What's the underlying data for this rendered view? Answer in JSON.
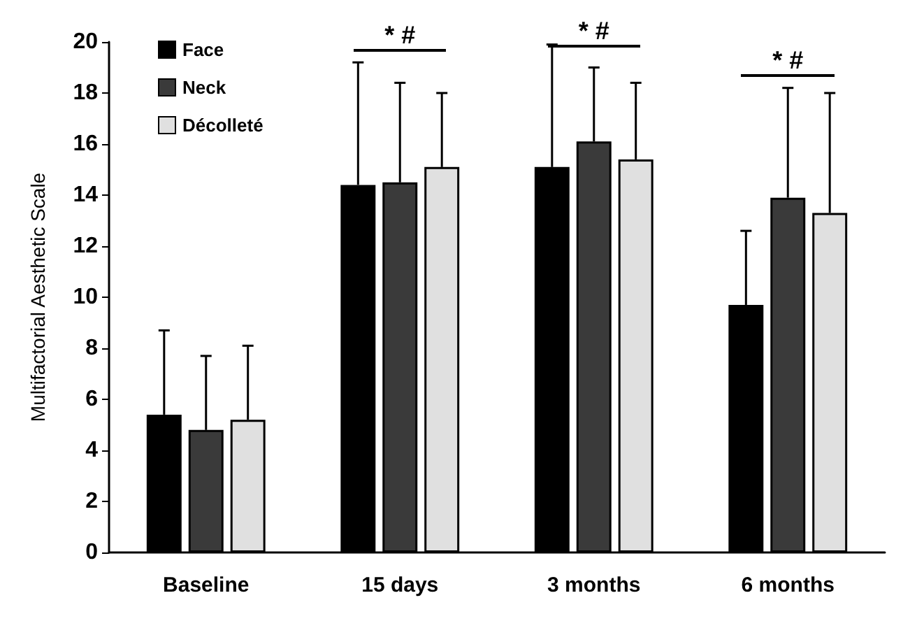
{
  "chart_data": {
    "type": "bar",
    "ylabel": "Multifactorial Aesthetic Scale",
    "categories": [
      "Baseline",
      "15 days",
      "3 months",
      "6 months"
    ],
    "series": [
      {
        "name": "Face",
        "color": "#000000",
        "values": [
          5.4,
          14.4,
          15.1,
          9.7
        ],
        "errors": [
          [
            5.4,
            8.7
          ],
          [
            14.4,
            19.2
          ],
          [
            15.1,
            19.9
          ],
          [
            9.7,
            12.6
          ]
        ]
      },
      {
        "name": "Neck",
        "color": "#3a3a3a",
        "values": [
          4.8,
          14.5,
          16.1,
          13.9
        ],
        "errors": [
          [
            4.8,
            7.7
          ],
          [
            14.5,
            18.4
          ],
          [
            16.1,
            19.0
          ],
          [
            13.9,
            18.2
          ]
        ]
      },
      {
        "name": "Décolleté",
        "color": "#e0e0e0",
        "values": [
          5.2,
          15.1,
          15.4,
          13.3
        ],
        "errors": [
          [
            5.2,
            8.1
          ],
          [
            15.1,
            18.0
          ],
          [
            15.4,
            18.4
          ],
          [
            13.3,
            18.0
          ]
        ]
      }
    ],
    "ylim": [
      0,
      20
    ],
    "yticks": [
      0,
      2,
      4,
      6,
      8,
      10,
      12,
      14,
      16,
      18,
      20
    ],
    "grid": false,
    "legend": "top left",
    "annotations": [
      "* #",
      "* #",
      "* #"
    ]
  }
}
